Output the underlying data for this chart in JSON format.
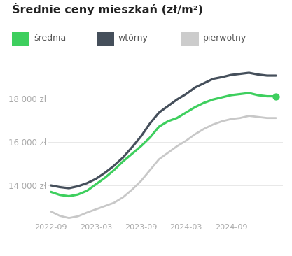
{
  "title": "Średnie ceny mieszkań (zł/m²)",
  "background_color": "#ffffff",
  "legend_labels": [
    "średnia",
    "wtórny",
    "pierwotny"
  ],
  "legend_colors": [
    "#3ecf5e",
    "#454f5b",
    "#cccccc"
  ],
  "y_ticks": [
    14000,
    16000,
    18000
  ],
  "y_labels": [
    "14 000 zł",
    "16 000 zł",
    "18 000 zł"
  ],
  "ylim": [
    12400,
    19700
  ],
  "xlim": [
    -0.3,
    25.8
  ],
  "xtick_positions": [
    0,
    5,
    10,
    15,
    20,
    25
  ],
  "xtick_labels": [
    "2022-09",
    "2023-03",
    "2023-09",
    "2024-03",
    "2024-09",
    ""
  ],
  "srednia_y": [
    13700,
    13560,
    13500,
    13580,
    13750,
    14050,
    14350,
    14700,
    15100,
    15450,
    15800,
    16200,
    16700,
    16950,
    17100,
    17350,
    17600,
    17800,
    17950,
    18050,
    18150,
    18200,
    18250,
    18150,
    18100,
    18100
  ],
  "wtorny_y": [
    14000,
    13920,
    13870,
    13960,
    14100,
    14300,
    14580,
    14900,
    15280,
    15750,
    16250,
    16850,
    17350,
    17650,
    17950,
    18200,
    18500,
    18700,
    18900,
    18980,
    19080,
    19130,
    19180,
    19100,
    19050,
    19050
  ],
  "pierwotny_y": [
    12800,
    12600,
    12500,
    12580,
    12750,
    12900,
    13050,
    13200,
    13450,
    13800,
    14200,
    14700,
    15200,
    15500,
    15800,
    16050,
    16350,
    16600,
    16800,
    16950,
    17050,
    17100,
    17200,
    17150,
    17100,
    17100
  ],
  "colors": {
    "srednia": "#3ecf5e",
    "wtorny": "#454f5b",
    "pierwotny": "#c8c8c8"
  },
  "line_width": 2.0,
  "dot_color": "#3ecf5e",
  "dot_x": 25,
  "dot_y": 18100,
  "dot_size": 55
}
